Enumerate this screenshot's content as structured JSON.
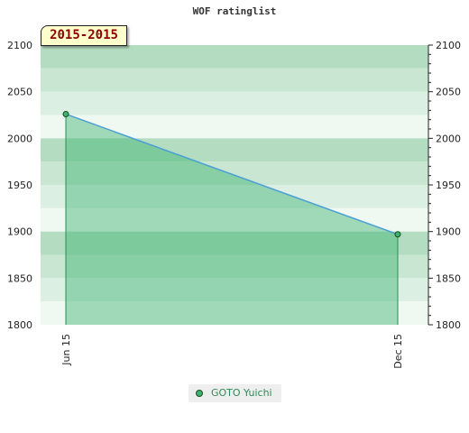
{
  "title": "WOF ratinglist",
  "range_badge": "2015-2015",
  "chart_data": {
    "type": "area",
    "title": "WOF ratinglist",
    "x_categories": [
      "Jun 15",
      "Dec 15"
    ],
    "series": [
      {
        "name": "GOTO Yuichi",
        "values": [
          2026,
          1897
        ]
      }
    ],
    "ylim": [
      1800,
      2100
    ],
    "y_ticks": [
      1800,
      1850,
      1900,
      1950,
      2000,
      2050,
      2100
    ],
    "grid": true,
    "legend": "bottom-center"
  },
  "colors": {
    "line": "#4a9fd5",
    "fill": "#3cb371",
    "marker": "#3cb371",
    "band_dark": "#b3dcc0",
    "band_light": "#f0f8f2"
  }
}
